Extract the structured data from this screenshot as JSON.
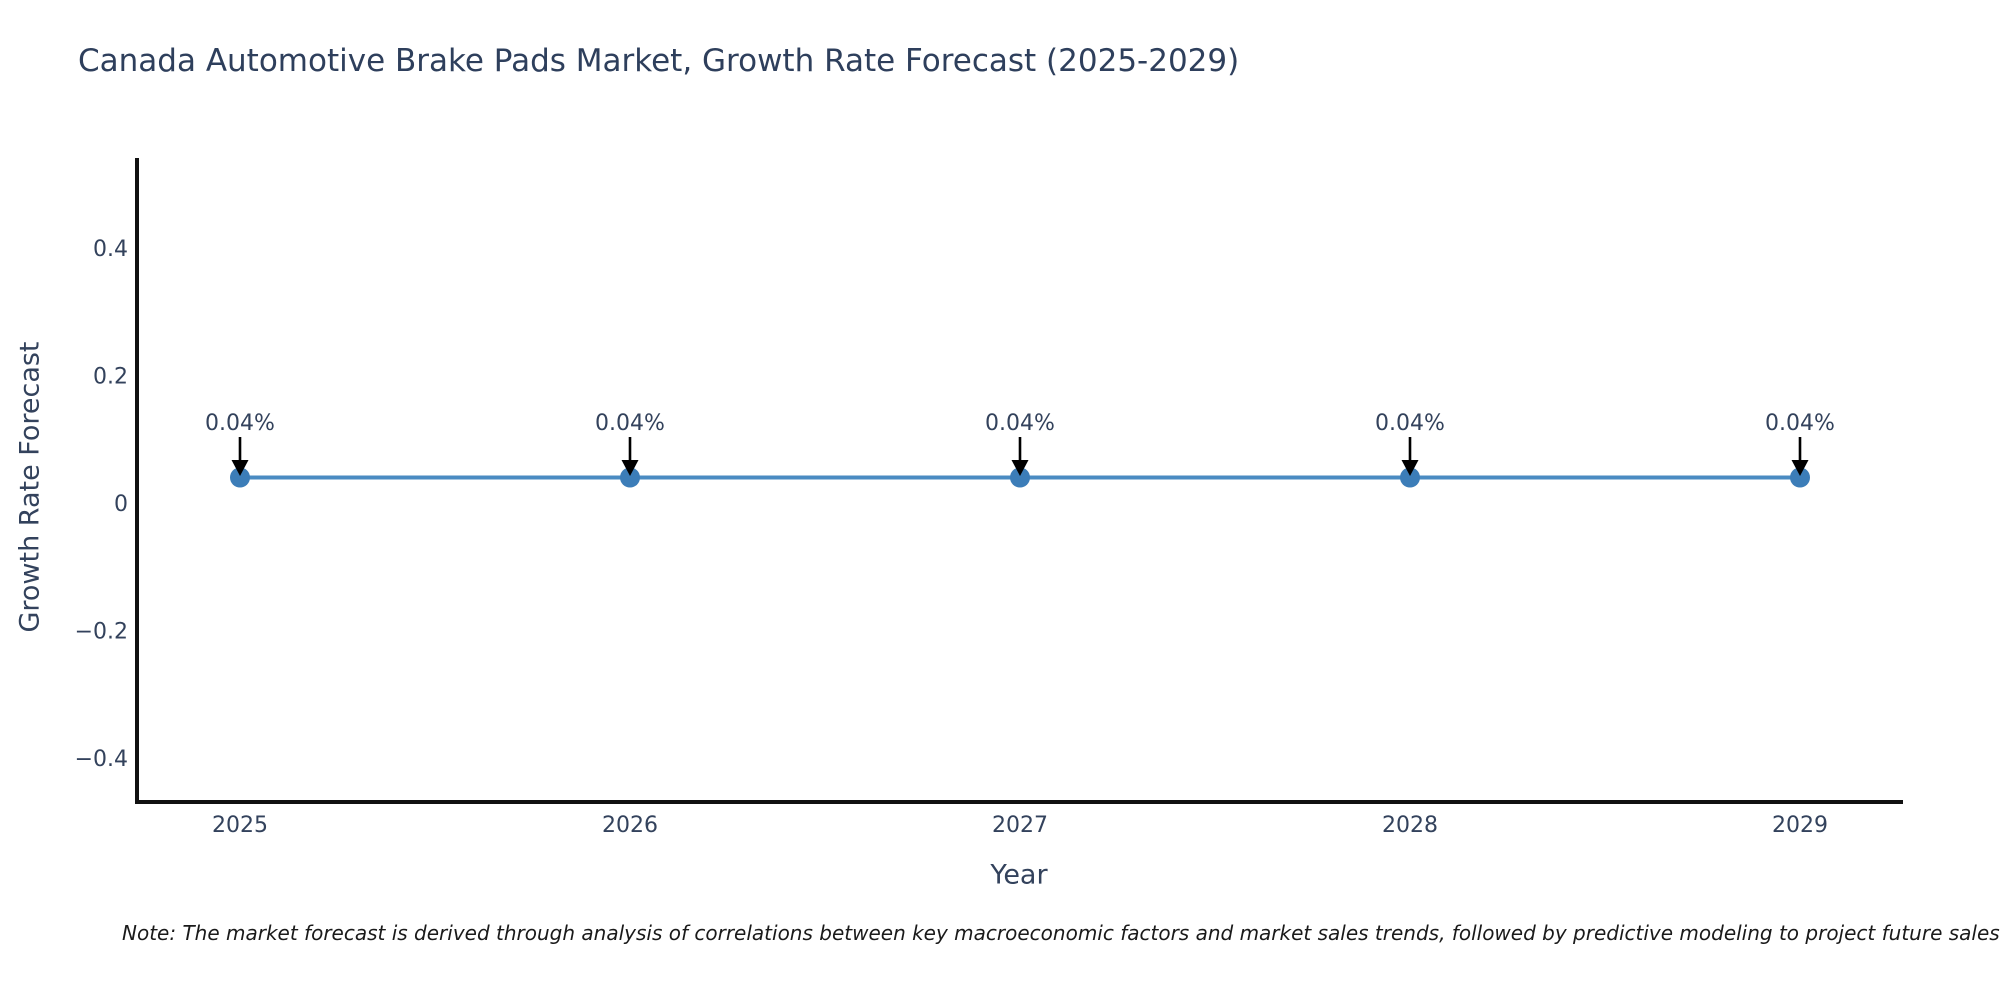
{
  "note": "Note: The market forecast is derived through analysis of correlations between key macroeconomic factors and market sales trends, followed by predictive modeling to project future sales.",
  "chart_data": {
    "type": "line",
    "title": "Canada Automotive Brake Pads Market, Growth Rate Forecast (2025-2029)",
    "xlabel": "Year",
    "ylabel": "Growth Rate Forecast",
    "x": [
      2025,
      2026,
      2027,
      2028,
      2029
    ],
    "series": [
      {
        "name": "Growth Rate Forecast",
        "values": [
          0.04,
          0.04,
          0.04,
          0.04,
          0.04
        ]
      }
    ],
    "point_labels": [
      "0.04%",
      "0.04%",
      "0.04%",
      "0.04%",
      "0.04%"
    ],
    "xtick_labels": [
      "2025",
      "2026",
      "2027",
      "2028",
      "2029"
    ],
    "yticks": [
      0.4,
      0.2,
      0,
      -0.2,
      -0.4
    ],
    "ytick_labels": [
      "0.4",
      "0.2",
      "0",
      "−0.2",
      "−0.4"
    ],
    "ylim": [
      -0.47,
      0.54
    ],
    "grid": false,
    "legend_position": "none",
    "annotation_style": "down-arrow",
    "colors": {
      "line": "#4a8bc2",
      "marker": "#3c7db8",
      "arrow": "#000000",
      "tick_text": "#33425c",
      "title_text": "#2e3f5c",
      "spine": "#111111"
    }
  }
}
